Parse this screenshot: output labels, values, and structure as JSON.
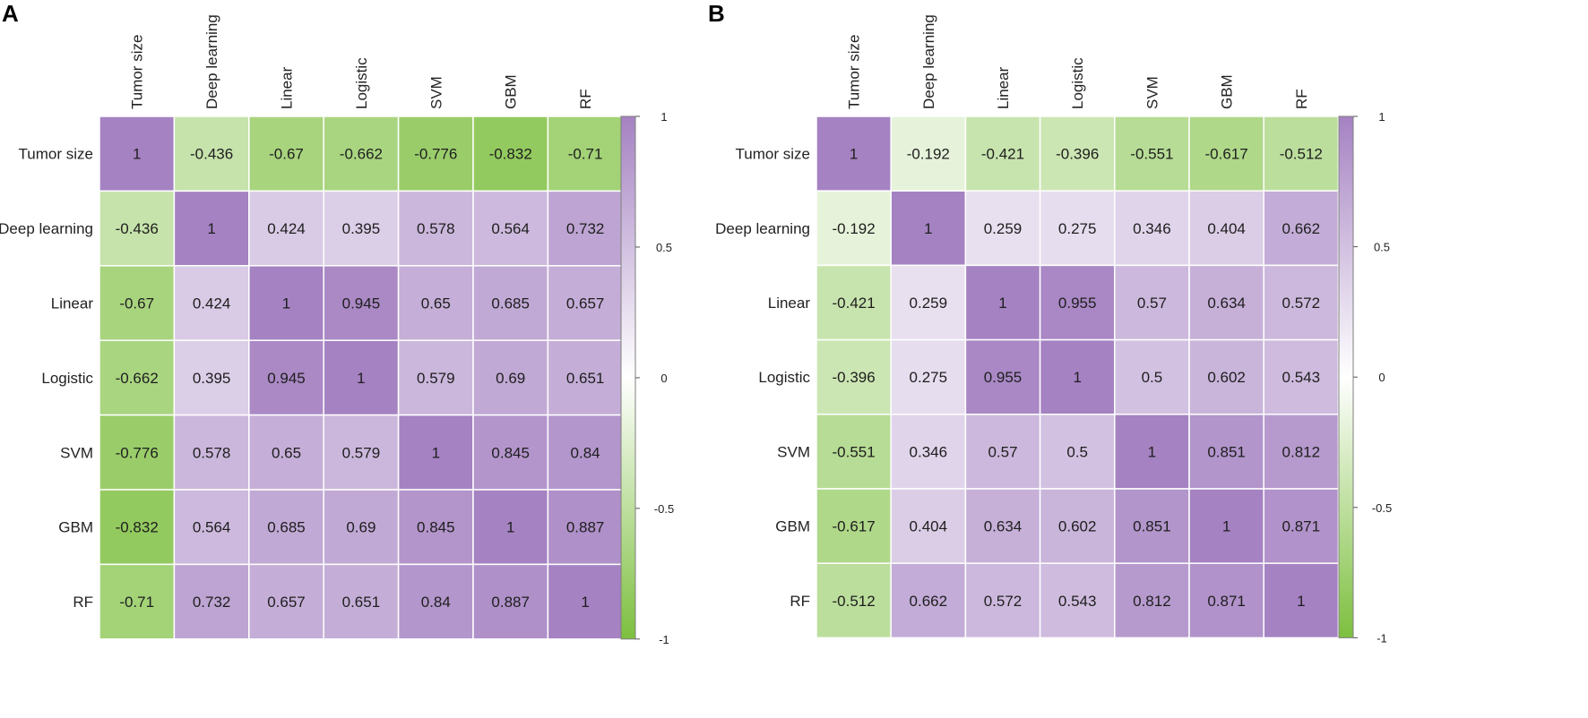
{
  "chart_data": [
    {
      "type": "heatmap",
      "panel_label": "A",
      "variables": [
        "Tumor size",
        "Deep learning",
        "Linear",
        "Logistic",
        "SVM",
        "GBM",
        "RF"
      ],
      "matrix": [
        [
          1,
          -0.436,
          -0.67,
          -0.662,
          -0.776,
          -0.832,
          -0.71
        ],
        [
          -0.436,
          1,
          0.424,
          0.395,
          0.578,
          0.564,
          0.732
        ],
        [
          -0.67,
          0.424,
          1,
          0.945,
          0.65,
          0.685,
          0.657
        ],
        [
          -0.662,
          0.395,
          0.945,
          1,
          0.579,
          0.69,
          0.651
        ],
        [
          -0.776,
          0.578,
          0.65,
          0.579,
          1,
          0.845,
          0.84
        ],
        [
          -0.832,
          0.564,
          0.685,
          0.69,
          0.845,
          1,
          0.887
        ],
        [
          -0.71,
          0.732,
          0.657,
          0.651,
          0.84,
          0.887,
          1
        ]
      ],
      "colorbar": {
        "range": [
          -1,
          1
        ],
        "ticks": [
          "1",
          "0.5",
          "0",
          "-0.5",
          "-1"
        ]
      }
    },
    {
      "type": "heatmap",
      "panel_label": "B",
      "variables": [
        "Tumor size",
        "Deep learning",
        "Linear",
        "Logistic",
        "SVM",
        "GBM",
        "RF"
      ],
      "matrix": [
        [
          1,
          -0.192,
          -0.421,
          -0.396,
          -0.551,
          -0.617,
          -0.512
        ],
        [
          -0.192,
          1,
          0.259,
          0.275,
          0.346,
          0.404,
          0.662
        ],
        [
          -0.421,
          0.259,
          1,
          0.955,
          0.57,
          0.634,
          0.572
        ],
        [
          -0.396,
          0.275,
          0.955,
          1,
          0.5,
          0.602,
          0.543
        ],
        [
          -0.551,
          0.346,
          0.57,
          0.5,
          1,
          0.851,
          0.812
        ],
        [
          -0.617,
          0.404,
          0.634,
          0.602,
          0.851,
          1,
          0.871
        ],
        [
          -0.512,
          0.662,
          0.572,
          0.543,
          0.812,
          0.871,
          1
        ]
      ],
      "colorbar": {
        "range": [
          -1,
          1
        ],
        "ticks": [
          "1",
          "0.5",
          "0",
          "-0.5",
          "-1"
        ]
      }
    }
  ],
  "colors": {
    "positive": "#a582c2",
    "neutral": "#ffffff",
    "negative": "#7dbf3f"
  }
}
